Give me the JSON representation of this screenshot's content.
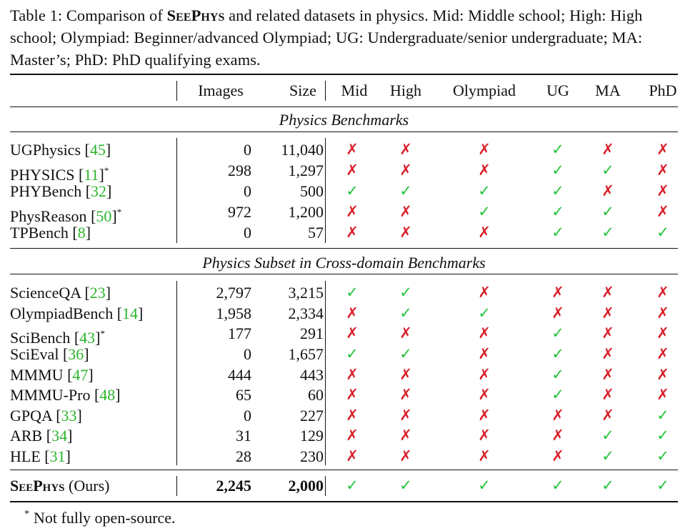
{
  "caption": {
    "label": "Table 1:",
    "pre": "Comparison of",
    "name": "SeePhys",
    "text": "and related datasets in physics. Mid: Middle school; High: High school; Olympiad: Beginner/advanced Olympiad; UG: Undergraduate/senior undergraduate; MA: Master’s; PhD: PhD qualifying exams."
  },
  "headers": {
    "images": "Images",
    "size": "Size",
    "mid": "Mid",
    "high": "High",
    "olympiad": "Olympiad",
    "ug": "UG",
    "ma": "MA",
    "phd": "PhD"
  },
  "sections": [
    "Physics Benchmarks",
    "Physics Subset in Cross-domain Benchmarks"
  ],
  "symbols": {
    "yes": "✓",
    "no": "✗",
    "star": "*"
  },
  "rows": [
    {
      "name": "UGPhysics",
      "ref": "45",
      "star": false,
      "images": "0",
      "size": "11,040",
      "flags": [
        false,
        false,
        false,
        true,
        false,
        false
      ]
    },
    {
      "name": "PHYSICS",
      "ref": "11",
      "star": true,
      "images": "298",
      "size": "1,297",
      "flags": [
        false,
        false,
        false,
        true,
        true,
        false
      ]
    },
    {
      "name": "PHYBench",
      "ref": "32",
      "star": false,
      "images": "0",
      "size": "500",
      "flags": [
        true,
        true,
        true,
        true,
        false,
        false
      ]
    },
    {
      "name": "PhysReason",
      "ref": "50",
      "star": true,
      "images": "972",
      "size": "1,200",
      "flags": [
        false,
        false,
        true,
        true,
        true,
        false
      ]
    },
    {
      "name": "TPBench",
      "ref": "8",
      "star": false,
      "images": "0",
      "size": "57",
      "flags": [
        false,
        false,
        false,
        true,
        true,
        true
      ]
    },
    {
      "name": "ScienceQA",
      "ref": "23",
      "star": false,
      "images": "2,797",
      "size": "3,215",
      "flags": [
        true,
        true,
        false,
        false,
        false,
        false
      ]
    },
    {
      "name": "OlympiadBench",
      "ref": "14",
      "star": false,
      "images": "1,958",
      "size": "2,334",
      "flags": [
        false,
        true,
        true,
        false,
        false,
        false
      ]
    },
    {
      "name": "SciBench",
      "ref": "43",
      "star": true,
      "images": "177",
      "size": "291",
      "flags": [
        false,
        false,
        false,
        true,
        false,
        false
      ]
    },
    {
      "name": "SciEval",
      "ref": "36",
      "star": false,
      "images": "0",
      "size": "1,657",
      "flags": [
        true,
        true,
        false,
        true,
        false,
        false
      ]
    },
    {
      "name": "MMMU",
      "ref": "47",
      "star": false,
      "images": "444",
      "size": "443",
      "flags": [
        false,
        false,
        false,
        true,
        false,
        false
      ]
    },
    {
      "name": "MMMU-Pro",
      "ref": "48",
      "star": false,
      "images": "65",
      "size": "60",
      "flags": [
        false,
        false,
        false,
        true,
        false,
        false
      ]
    },
    {
      "name": "GPQA",
      "ref": "33",
      "star": false,
      "images": "0",
      "size": "227",
      "flags": [
        false,
        false,
        false,
        false,
        false,
        true
      ]
    },
    {
      "name": "ARB",
      "ref": "34",
      "star": false,
      "images": "31",
      "size": "129",
      "flags": [
        false,
        false,
        false,
        false,
        true,
        true
      ]
    },
    {
      "name": "HLE",
      "ref": "31",
      "star": false,
      "images": "28",
      "size": "230",
      "flags": [
        false,
        false,
        false,
        false,
        true,
        true
      ]
    }
  ],
  "ours": {
    "name": "SeePhys",
    "suffix": "(Ours)",
    "images": "2,245",
    "size": "2,000",
    "flags": [
      true,
      true,
      true,
      true,
      true,
      true
    ]
  },
  "footnote": {
    "star": "*",
    "text": "Not fully open-source."
  },
  "colors": {
    "yes": "#22c33a",
    "no": "#d9202a",
    "ref": "#2bb52b"
  }
}
